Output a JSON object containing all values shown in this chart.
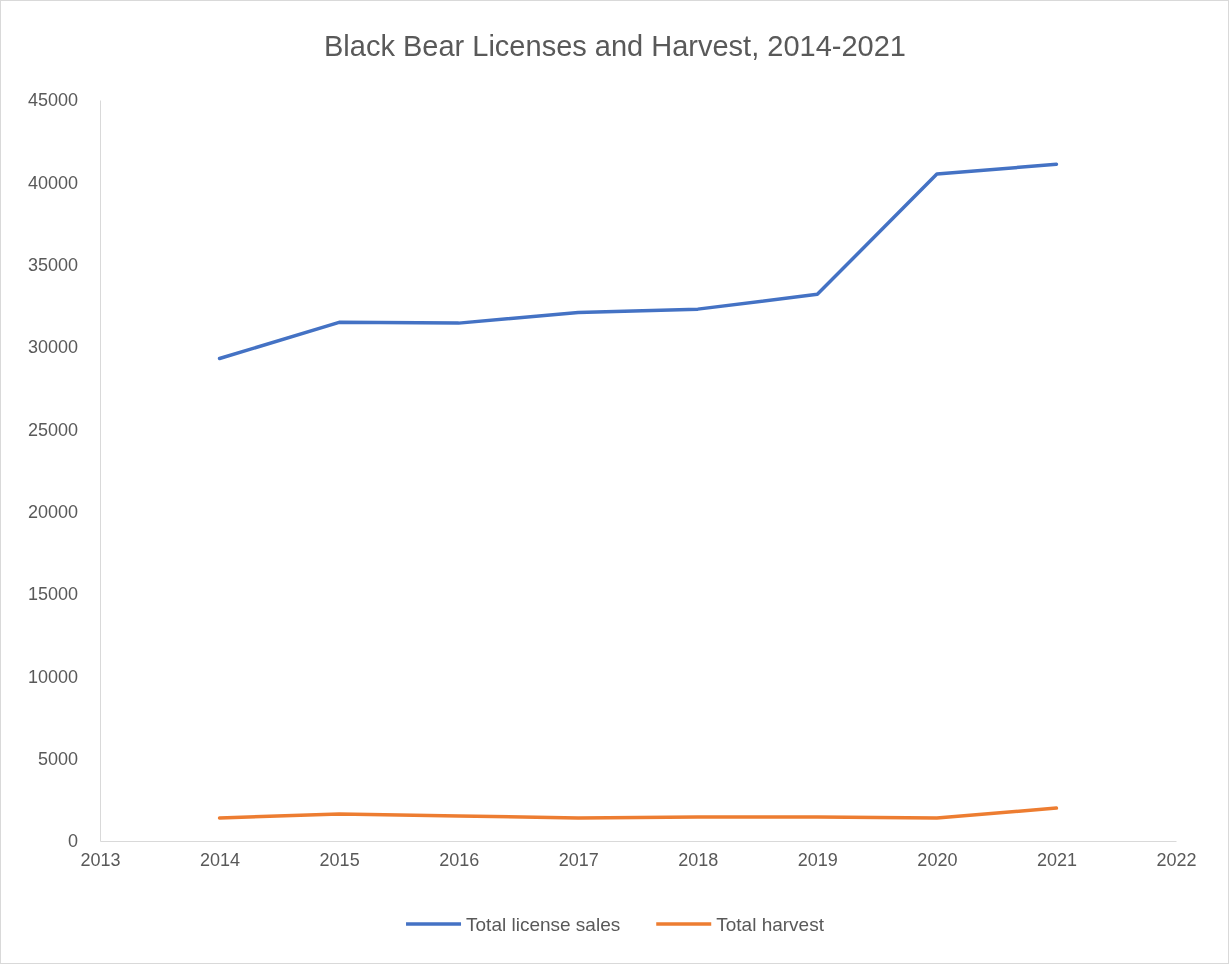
{
  "chart_data": {
    "type": "line",
    "title": "Black Bear Licenses and Harvest, 2014-2021",
    "x": [
      2014,
      2015,
      2016,
      2017,
      2018,
      2019,
      2020,
      2021
    ],
    "series": [
      {
        "name": "Total license sales",
        "color": "#4472c4",
        "values": [
          29300,
          31500,
          31450,
          32100,
          32300,
          33200,
          40500,
          41100
        ]
      },
      {
        "name": "Total harvest",
        "color": "#ed7d31",
        "values": [
          1400,
          1640,
          1520,
          1400,
          1460,
          1460,
          1400,
          2000
        ]
      }
    ],
    "xlim": [
      2013,
      2022
    ],
    "xticks": [
      2013,
      2014,
      2015,
      2016,
      2017,
      2018,
      2019,
      2020,
      2021,
      2022
    ],
    "ylim": [
      0,
      45000
    ],
    "yticks": [
      0,
      5000,
      10000,
      15000,
      20000,
      25000,
      30000,
      35000,
      40000,
      45000
    ],
    "grid": false,
    "legend": "bottom",
    "marker": "none",
    "line_style": "solid"
  }
}
